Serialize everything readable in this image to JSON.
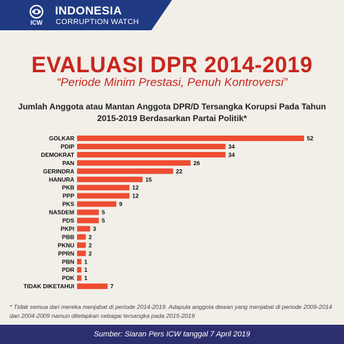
{
  "header": {
    "org_name": "INDONESIA",
    "org_subtitle": "CORRUPTION WATCH",
    "logo_text": "ICW",
    "brand_color": "#1f3a82"
  },
  "title": "EVALUASI DPR 2014-2019",
  "subtitle": "“Periode Minim Prestasi, Penuh Kontroversi”",
  "chart_data": {
    "type": "bar",
    "orientation": "horizontal",
    "title": "Jumlah Anggota atau Mantan Anggota DPR/D Tersangka Korupsi Pada Tahun 2015-2019 Berdasarkan Partai Politik*",
    "categories": [
      "GOLKAR",
      "PDIP",
      "DEMOKRAT",
      "PAN",
      "GERINDRA",
      "HANURA",
      "PKB",
      "PPP",
      "PKS",
      "NASDEM",
      "PDS",
      "PKPI",
      "PBB",
      "PKNU",
      "PPRN",
      "PBN",
      "PDR",
      "PDK",
      "TIDAK DIKETAHUI"
    ],
    "values": [
      52,
      34,
      34,
      26,
      22,
      15,
      12,
      12,
      9,
      5,
      5,
      3,
      2,
      2,
      2,
      1,
      1,
      1,
      7
    ],
    "bar_color": "#ee4d32",
    "xlim": [
      0,
      52
    ],
    "grid": false,
    "legend": "none"
  },
  "footnote": "* Tidak semua dari mereka menjabat di periode 2014-2019. Adapula anggota dewan yang menjabat di periode 2009-2014 dan 2004-2009 namun ditetapkan sebagai tersangka pada 2015-2019",
  "source": "Sumber: Siaran Pers ICW tanggal 7 April 2019"
}
